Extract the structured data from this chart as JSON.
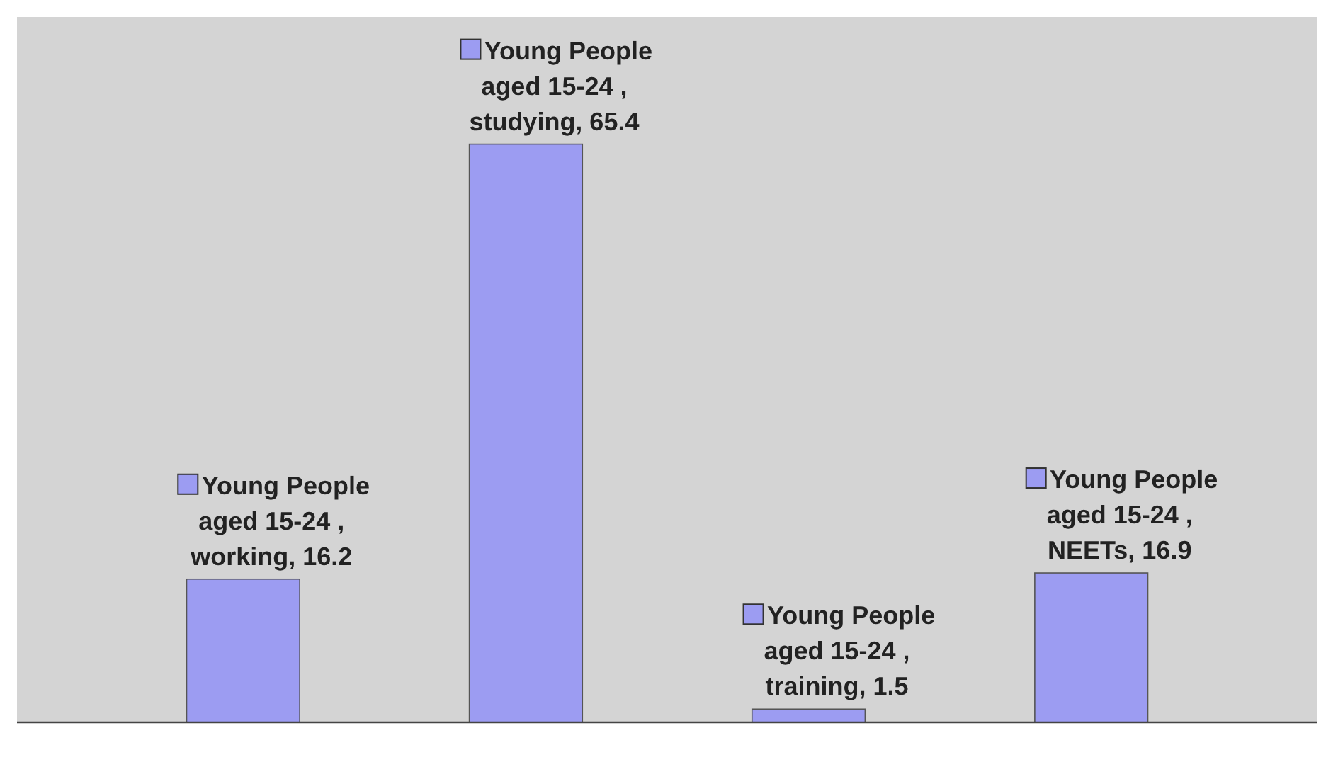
{
  "chart_data": {
    "type": "bar",
    "categories": [
      null,
      null,
      null,
      null
    ],
    "values": [
      16.2,
      65.4,
      1.5,
      16.9
    ],
    "color": "#9c9cf2",
    "value_labels": [
      "Young People aged 15-24 , working, 16.2",
      "Young People aged 15-24 , studying, 65.4",
      "Young People aged 15-24 , training, 1.5",
      "Young People aged 15-24 , NEETs, 16.9"
    ]
  }
}
